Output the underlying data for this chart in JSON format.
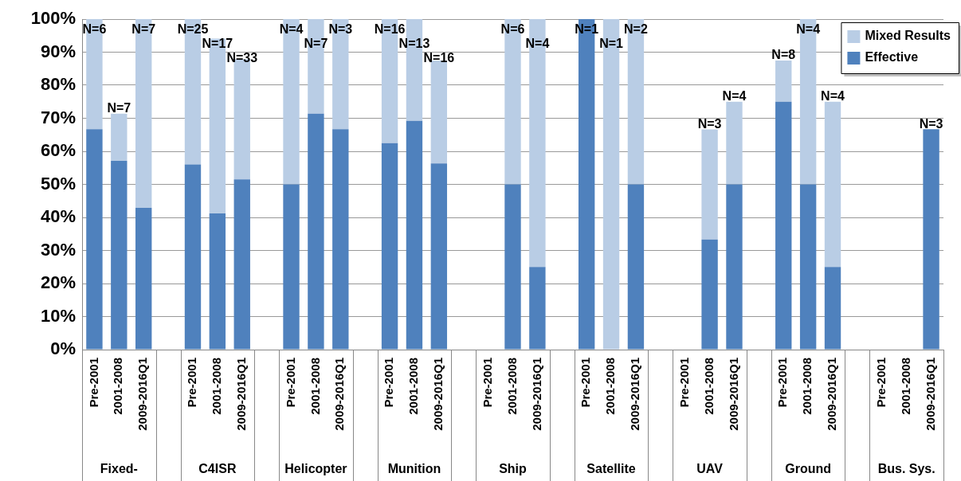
{
  "chart_data": {
    "type": "bar",
    "stacked": true,
    "categories": [
      "Pre-2001",
      "2001-2008",
      "2009-2016Q1",
      null,
      "Pre-2001",
      "2001-2008",
      "2009-2016Q1",
      null,
      "Pre-2001",
      "2001-2008",
      "2009-2016Q1",
      null,
      "Pre-2001",
      "2001-2008",
      "2009-2016Q1",
      null,
      "Pre-2001",
      "2001-2008",
      "2009-2016Q1",
      null,
      "Pre-2001",
      "2001-2008",
      "2009-2016Q1",
      null,
      "Pre-2001",
      "2001-2008",
      "2009-2016Q1",
      null,
      "Pre-2001",
      "2001-2008",
      "2009-2016Q1",
      null,
      "Pre-2001",
      "2001-2008",
      "2009-2016Q1"
    ],
    "series": [
      {
        "name": "Effective",
        "color": "#4f81bd",
        "values": [
          66.7,
          57.1,
          42.9,
          null,
          56.0,
          41.2,
          51.5,
          null,
          50.0,
          71.4,
          66.7,
          null,
          62.5,
          69.2,
          56.3,
          null,
          null,
          50.0,
          25.0,
          null,
          100.0,
          0.0,
          50.0,
          null,
          null,
          33.3,
          50.0,
          null,
          75.0,
          50.0,
          25.0,
          null,
          null,
          null,
          66.7
        ]
      },
      {
        "name": "Mixed Results",
        "color": "#b9cde5",
        "values": [
          33.3,
          14.3,
          57.1,
          null,
          44.0,
          52.9,
          36.4,
          null,
          50.0,
          28.6,
          33.3,
          null,
          37.5,
          30.8,
          31.2,
          null,
          null,
          50.0,
          75.0,
          null,
          0.0,
          100.0,
          50.0,
          null,
          null,
          33.3,
          25.0,
          null,
          12.5,
          50.0,
          50.0,
          null,
          null,
          null,
          0.0
        ]
      }
    ],
    "annotations": [
      "Fixed-",
      "C4ISR",
      "Helicopter",
      "Munition",
      "Ship",
      "Satellite",
      "UAV",
      "Ground",
      "Bus. Sys.",
      "N=6",
      "N=7",
      "N=7",
      "N=25",
      "N=17",
      "N=33",
      "N=4",
      "N=7",
      "N=3",
      "N=16",
      "N=13",
      "N=16",
      "N=6",
      "N=4",
      "N=1",
      "N=1",
      "N=2",
      "N=3",
      "N=4",
      "N=8",
      "N=4",
      "N=4",
      "N=3"
    ],
    "ylim": [
      0,
      100
    ],
    "yticks": [
      {
        "value": 0,
        "label": "0%"
      },
      {
        "value": 10,
        "label": "10%"
      },
      {
        "value": 20,
        "label": "20%"
      },
      {
        "value": 30,
        "label": "30%"
      },
      {
        "value": 40,
        "label": "40%"
      },
      {
        "value": 50,
        "label": "50%"
      },
      {
        "value": 60,
        "label": "60%"
      },
      {
        "value": 70,
        "label": "70%"
      },
      {
        "value": 80,
        "label": "80%"
      },
      {
        "value": 90,
        "label": "90%"
      },
      {
        "value": 100,
        "label": "100%"
      }
    ],
    "grid": "y",
    "legend": "top right"
  }
}
